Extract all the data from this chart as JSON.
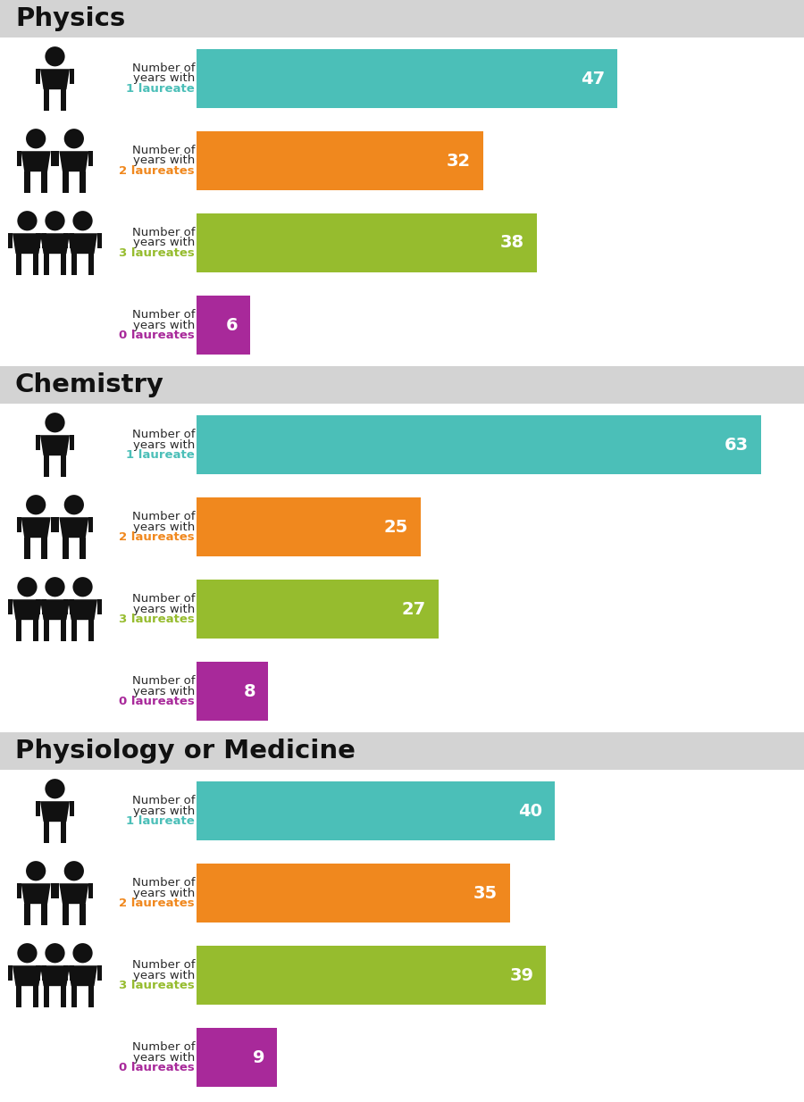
{
  "sections": [
    {
      "title": "Physics",
      "bars": [
        {
          "label_line1": "Number of",
          "label_line2": "years with",
          "label_line3": "1 laureate",
          "value": 47,
          "color": "#4BBFB8",
          "label_color": "#4BBFB8",
          "icon_count": 1
        },
        {
          "label_line1": "Number of",
          "label_line2": "years with",
          "label_line3": "2 laureates",
          "value": 32,
          "color": "#F0881E",
          "label_color": "#F0881E",
          "icon_count": 2
        },
        {
          "label_line1": "Number of",
          "label_line2": "years with",
          "label_line3": "3 laureates",
          "value": 38,
          "color": "#96BC2E",
          "label_color": "#96BC2E",
          "icon_count": 3
        },
        {
          "label_line1": "Number of",
          "label_line2": "years with",
          "label_line3": "0 laureates",
          "value": 6,
          "color": "#A8299A",
          "label_color": "#A8299A",
          "icon_count": 0
        }
      ]
    },
    {
      "title": "Chemistry",
      "bars": [
        {
          "label_line1": "Number of",
          "label_line2": "years with",
          "label_line3": "1 laureate",
          "value": 63,
          "color": "#4BBFB8",
          "label_color": "#4BBFB8",
          "icon_count": 1
        },
        {
          "label_line1": "Number of",
          "label_line2": "years with",
          "label_line3": "2 laureates",
          "value": 25,
          "color": "#F0881E",
          "label_color": "#F0881E",
          "icon_count": 2
        },
        {
          "label_line1": "Number of",
          "label_line2": "years with",
          "label_line3": "3 laureates",
          "value": 27,
          "color": "#96BC2E",
          "label_color": "#96BC2E",
          "icon_count": 3
        },
        {
          "label_line1": "Number of",
          "label_line2": "years with",
          "label_line3": "0 laureates",
          "value": 8,
          "color": "#A8299A",
          "label_color": "#A8299A",
          "icon_count": 0
        }
      ]
    },
    {
      "title": "Physiology or Medicine",
      "bars": [
        {
          "label_line1": "Number of",
          "label_line2": "years with",
          "label_line3": "1 laureate",
          "value": 40,
          "color": "#4BBFB8",
          "label_color": "#4BBFB8",
          "icon_count": 1
        },
        {
          "label_line1": "Number of",
          "label_line2": "years with",
          "label_line3": "2 laureates",
          "value": 35,
          "color": "#F0881E",
          "label_color": "#F0881E",
          "icon_count": 2
        },
        {
          "label_line1": "Number of",
          "label_line2": "years with",
          "label_line3": "3 laureates",
          "value": 39,
          "color": "#96BC2E",
          "label_color": "#96BC2E",
          "icon_count": 3
        },
        {
          "label_line1": "Number of",
          "label_line2": "years with",
          "label_line3": "0 laureates",
          "value": 9,
          "color": "#A8299A",
          "label_color": "#A8299A",
          "icon_count": 0
        }
      ]
    }
  ],
  "max_value": 65,
  "background_color": "#FFFFFF",
  "header_bg_color": "#D3D3D3",
  "title_fontsize": 21,
  "bar_label_fontsize": 9.5,
  "value_fontsize": 14,
  "icon_color": "#111111"
}
